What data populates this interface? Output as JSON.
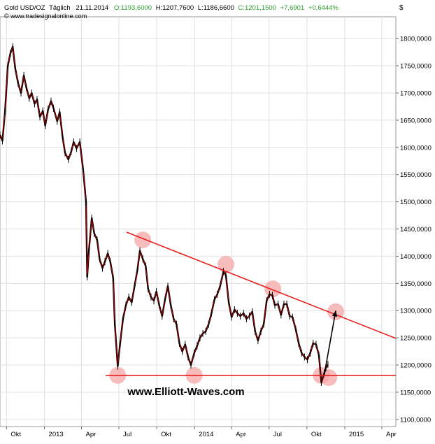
{
  "header": {
    "symbol": "Gold USD/OZ",
    "frequency": "Täglich",
    "date": "21.11.2014",
    "open": "O:1193,6000",
    "high": "H:1207,7600",
    "low": "L:1186,6600",
    "close": "C:1201,1500",
    "change": "+7,6901",
    "change_pct": "+0,6444%",
    "copyright": "© www.tradesignalonline.com",
    "currency": "$"
  },
  "watermark": "www.Elliott-Waves.com",
  "colors": {
    "price": "#000000",
    "close_line": "#d40000",
    "trendline": "#e8201e",
    "marker": "#f4a6a6",
    "positive": "#2e9e2e",
    "grid": "#e0e0e0"
  },
  "chart_data": {
    "type": "line",
    "title": "Gold USD/OZ Täglich",
    "ylim": [
      1087,
      1840
    ],
    "xlim": [
      "2012-09-15",
      "2015-05-05"
    ],
    "yticks": [
      1100,
      1150,
      1200,
      1250,
      1300,
      1350,
      1400,
      1450,
      1500,
      1550,
      1600,
      1650,
      1700,
      1750,
      1800
    ],
    "ytick_labels": [
      "1100,0000",
      "1150,0000",
      "1200,0000",
      "1250,0000",
      "1300,0000",
      "1350,0000",
      "1400,0000",
      "1450,0000",
      "1500,0000",
      "1550,0000",
      "1600,0000",
      "1650,0000",
      "1700,0000",
      "1750,0000",
      "1800,0000"
    ],
    "xticks": [
      {
        "x": "2012-10-01",
        "label": "Okt"
      },
      {
        "x": "2013-01-01",
        "label": "2013"
      },
      {
        "x": "2013-04-01",
        "label": "Apr"
      },
      {
        "x": "2013-07-01",
        "label": "Jul"
      },
      {
        "x": "2013-10-01",
        "label": "Okt"
      },
      {
        "x": "2014-01-01",
        "label": "2014"
      },
      {
        "x": "2014-04-01",
        "label": "Apr"
      },
      {
        "x": "2014-07-01",
        "label": "Jul"
      },
      {
        "x": "2014-10-01",
        "label": "Okt"
      },
      {
        "x": "2015-01-01",
        "label": "2015"
      },
      {
        "x": "2015-04-01",
        "label": "Apr"
      }
    ],
    "grid": true,
    "series": [
      {
        "x": [
          "2012-09-15",
          "2012-09-21",
          "2012-09-27",
          "2012-10-04",
          "2012-10-10",
          "2012-10-16",
          "2012-10-22",
          "2012-10-29",
          "2012-11-05",
          "2012-11-12",
          "2012-11-18",
          "2012-11-25",
          "2012-12-01",
          "2012-12-08",
          "2012-12-14",
          "2012-12-21",
          "2012-12-28",
          "2013-01-03",
          "2013-01-10",
          "2013-01-17",
          "2013-01-23",
          "2013-02-01",
          "2013-02-07",
          "2013-02-14",
          "2013-02-20",
          "2013-02-28",
          "2013-03-07",
          "2013-03-13",
          "2013-03-20",
          "2013-03-28",
          "2013-04-05",
          "2013-04-12",
          "2013-04-15",
          "2013-04-19",
          "2013-04-26",
          "2013-05-02",
          "2013-05-09",
          "2013-05-15",
          "2013-05-22",
          "2013-05-28",
          "2013-06-04",
          "2013-06-10",
          "2013-06-17",
          "2013-06-21",
          "2013-06-28",
          "2013-07-04",
          "2013-07-11",
          "2013-07-18",
          "2013-07-25",
          "2013-08-01",
          "2013-08-08",
          "2013-08-15",
          "2013-08-21",
          "2013-08-28",
          "2013-09-04",
          "2013-09-10",
          "2013-09-17",
          "2013-09-24",
          "2013-09-30",
          "2013-10-07",
          "2013-10-14",
          "2013-10-21",
          "2013-10-28",
          "2013-11-04",
          "2013-11-11",
          "2013-11-18",
          "2013-11-25",
          "2013-12-02",
          "2013-12-09",
          "2013-12-16",
          "2013-12-23",
          "2013-12-31",
          "2014-01-07",
          "2014-01-14",
          "2014-01-21",
          "2014-01-28",
          "2014-02-04",
          "2014-02-11",
          "2014-02-18",
          "2014-02-25",
          "2014-03-04",
          "2014-03-12",
          "2014-03-18",
          "2014-03-25",
          "2014-04-01",
          "2014-04-08",
          "2014-04-15",
          "2014-04-22",
          "2014-04-30",
          "2014-05-07",
          "2014-05-14",
          "2014-05-21",
          "2014-05-28",
          "2014-06-04",
          "2014-06-11",
          "2014-06-18",
          "2014-06-25",
          "2014-07-02",
          "2014-07-09",
          "2014-07-15",
          "2014-07-23",
          "2014-07-30",
          "2014-08-06",
          "2014-08-13",
          "2014-08-20",
          "2014-08-27",
          "2014-09-04",
          "2014-09-11",
          "2014-09-18",
          "2014-09-25",
          "2014-10-02",
          "2014-10-09",
          "2014-10-16",
          "2014-10-23",
          "2014-10-30",
          "2014-11-05",
          "2014-11-12",
          "2014-11-16",
          "2014-11-21"
        ],
        "values": [
          1623,
          1612,
          1665,
          1750,
          1772,
          1785,
          1745,
          1718,
          1700,
          1732,
          1710,
          1690,
          1700,
          1680,
          1688,
          1656,
          1667,
          1640,
          1670,
          1685,
          1672,
          1648,
          1665,
          1620,
          1590,
          1578,
          1592,
          1610,
          1598,
          1610,
          1560,
          1500,
          1362,
          1410,
          1470,
          1442,
          1430,
          1395,
          1378,
          1390,
          1405,
          1390,
          1360,
          1275,
          1198,
          1240,
          1285,
          1310,
          1325,
          1315,
          1345,
          1375,
          1410,
          1395,
          1382,
          1340,
          1325,
          1318,
          1335,
          1310,
          1290,
          1320,
          1345,
          1310,
          1285,
          1275,
          1240,
          1225,
          1238,
          1215,
          1200,
          1222,
          1235,
          1250,
          1258,
          1262,
          1275,
          1295,
          1320,
          1330,
          1345,
          1372,
          1365,
          1315,
          1288,
          1302,
          1295,
          1290,
          1295,
          1285,
          1290,
          1298,
          1262,
          1245,
          1262,
          1275,
          1318,
          1330,
          1328,
          1310,
          1312,
          1292,
          1312,
          1312,
          1290,
          1288,
          1265,
          1240,
          1222,
          1215,
          1210,
          1222,
          1240,
          1238,
          1218,
          1168,
          1185,
          1195,
          1201
        ]
      }
    ],
    "annotations": {
      "resistance_trendline": [
        {
          "x": "2013-07-20",
          "y": 1444
        },
        {
          "x": "2015-05-05",
          "y": 1249
        }
      ],
      "support_line": [
        {
          "x": "2013-05-30",
          "y": 1181
        },
        {
          "x": "2015-05-05",
          "y": 1181
        }
      ],
      "forecast_arrow": [
        {
          "x": "2014-11-12",
          "y": 1182
        },
        {
          "x": "2014-12-10",
          "y": 1300
        }
      ],
      "markers": [
        {
          "x": "2013-06-28",
          "y": 1181
        },
        {
          "x": "2013-08-28",
          "y": 1430
        },
        {
          "x": "2013-12-31",
          "y": 1181
        },
        {
          "x": "2014-03-18",
          "y": 1385
        },
        {
          "x": "2014-07-10",
          "y": 1340
        },
        {
          "x": "2014-11-05",
          "y": 1181
        },
        {
          "x": "2014-11-23",
          "y": 1177
        },
        {
          "x": "2014-12-10",
          "y": 1298
        }
      ]
    }
  }
}
